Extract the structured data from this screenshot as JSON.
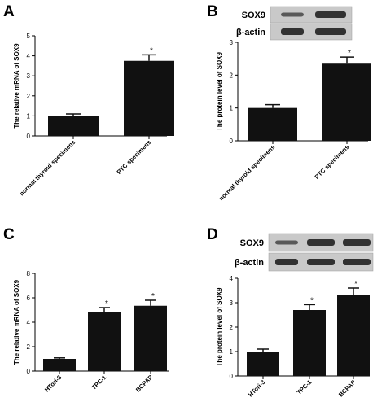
{
  "colors": {
    "bar": "#111111",
    "axis": "#000000",
    "blot_bg": "#c9c9c9",
    "band": "#2a2a2a"
  },
  "chart_data": [
    {
      "panel": "A",
      "type": "bar",
      "categories": [
        "normal thyroid specimens",
        "PTC specimens"
      ],
      "values": [
        1.0,
        3.75
      ],
      "errors": [
        0.1,
        0.3
      ],
      "significance": [
        "",
        "*"
      ],
      "ylabel": "The relative mRNA of SOX9",
      "ylim": [
        0,
        5
      ],
      "yticks": [
        0,
        1,
        2,
        3,
        4,
        5
      ],
      "blot": null
    },
    {
      "panel": "B",
      "type": "bar",
      "categories": [
        "normal thyroid specimens",
        "PTC specimens"
      ],
      "values": [
        1.0,
        2.35
      ],
      "errors": [
        0.1,
        0.2
      ],
      "significance": [
        "",
        "*"
      ],
      "ylabel": "The protein level of SOX9",
      "ylim": [
        0,
        3
      ],
      "yticks": [
        0,
        1,
        2,
        3
      ],
      "blot": {
        "rows": [
          "SOX9",
          "β-actin"
        ]
      }
    },
    {
      "panel": "C",
      "type": "bar",
      "categories": [
        "HTori-3",
        "TPC-1",
        "BCPAP"
      ],
      "values": [
        1.0,
        4.8,
        5.35
      ],
      "errors": [
        0.08,
        0.4,
        0.45
      ],
      "significance": [
        "",
        "*",
        "*"
      ],
      "ylabel": "The relative mRNA of SOX9",
      "ylim": [
        0,
        8
      ],
      "yticks": [
        0,
        2,
        4,
        6,
        8
      ],
      "blot": null
    },
    {
      "panel": "D",
      "type": "bar",
      "categories": [
        "HTori-3",
        "TPC-1",
        "BCPAP"
      ],
      "values": [
        1.0,
        2.7,
        3.3
      ],
      "errors": [
        0.1,
        0.22,
        0.3
      ],
      "significance": [
        "",
        "*",
        "*"
      ],
      "ylabel": "The protein level of SOX9",
      "ylim": [
        0,
        4
      ],
      "yticks": [
        0,
        1,
        2,
        3,
        4
      ],
      "blot": {
        "rows": [
          "SOX9",
          "β-actin"
        ]
      }
    }
  ]
}
